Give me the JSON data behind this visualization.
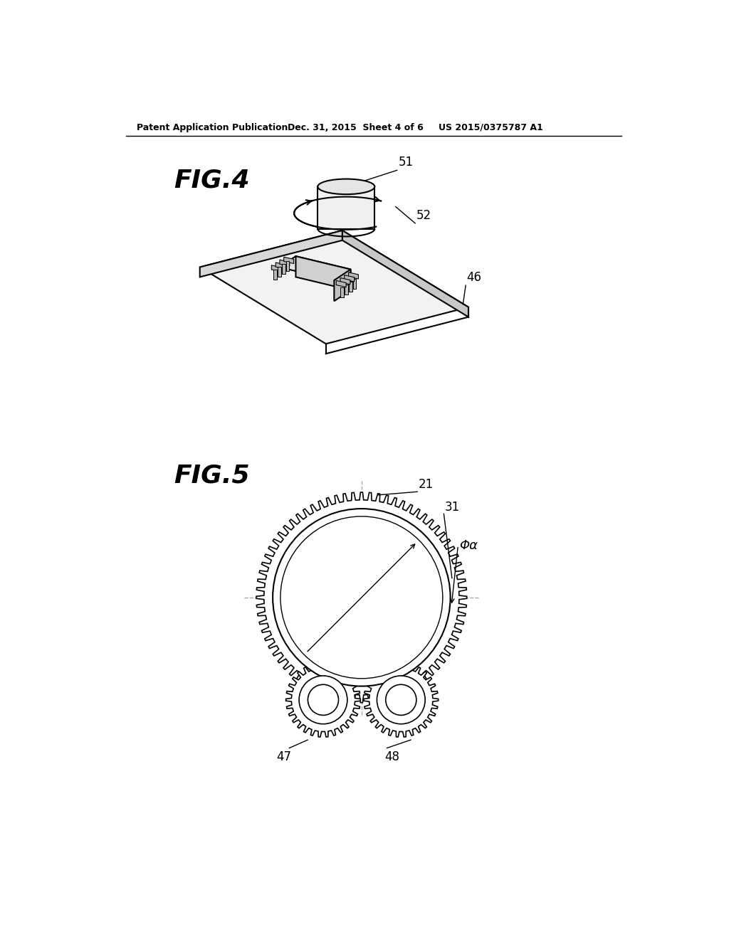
{
  "bg_color": "#ffffff",
  "line_color": "#000000",
  "dashed_color": "#aaaaaa",
  "header_left": "Patent Application Publication",
  "header_mid": "Dec. 31, 2015  Sheet 4 of 6",
  "header_right": "US 2015/0375787 A1",
  "fig4_label": "FIG.4",
  "fig5_label": "FIG.5",
  "label_51": "51",
  "label_52": "52",
  "label_46": "46",
  "label_21": "21",
  "label_31": "31",
  "label_phi": "Φα",
  "label_47": "47",
  "label_48": "48"
}
